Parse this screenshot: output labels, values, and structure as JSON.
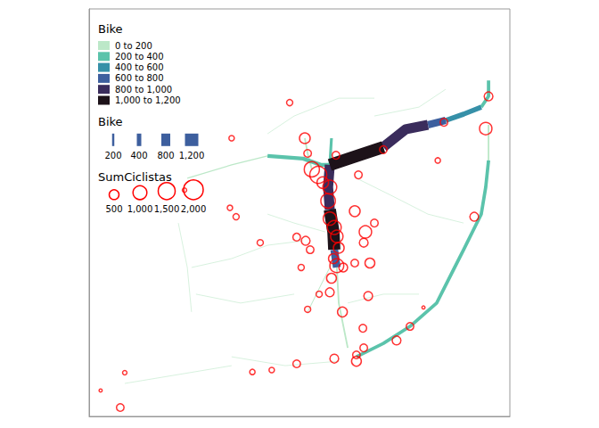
{
  "chart_data": {
    "type": "map",
    "xlim": [
      -9.235,
      -9.085
    ],
    "ylim": [
      38.69,
      38.8
    ],
    "tick_labels": false,
    "grid": false,
    "legend": "top-left",
    "color_legend": {
      "title": "Bike",
      "classes": [
        {
          "label": "0 to 200",
          "min": 0,
          "max": 200,
          "color": "#bce8c8"
        },
        {
          "label": "200 to 400",
          "min": 200,
          "max": 400,
          "color": "#5bc3ab"
        },
        {
          "label": "400 to 600",
          "min": 400,
          "max": 600,
          "color": "#3690a8"
        },
        {
          "label": "600 to 800",
          "min": 600,
          "max": 800,
          "color": "#3d5f9e"
        },
        {
          "label": "800 to 1,000",
          "min": 800,
          "max": 1000,
          "color": "#3a2c5c"
        },
        {
          "label": "1,000 to 1,200",
          "min": 1000,
          "max": 1200,
          "color": "#1d1219"
        }
      ]
    },
    "width_legend": {
      "title": "Bike",
      "values": [
        200,
        400,
        800,
        {
          "value": 1200,
          "label": "1,200"
        }
      ]
    },
    "size_legend": {
      "title": "SumCiclistas",
      "color": "#ff0000",
      "values": [
        500,
        {
          "value": 1000,
          "label": "1,000"
        },
        {
          "value": 1500,
          "label": "1,500"
        },
        {
          "value": 2000,
          "label": "2,000"
        }
      ]
    },
    "routes": [
      {
        "bike": 20,
        "coords": [
          [
            -9.1985,
            38.7302
          ],
          [
            -9.1842,
            38.7326
          ],
          [
            -9.1714,
            38.7362
          ],
          [
            -9.1587,
            38.7374
          ]
        ]
      },
      {
        "bike": 20,
        "coords": [
          [
            -9.1969,
            38.723
          ],
          [
            -9.181,
            38.7206
          ],
          [
            -9.1619,
            38.723
          ]
        ]
      },
      {
        "bike": 20,
        "coords": [
          [
            -9.1714,
            38.7663
          ],
          [
            -9.1619,
            38.7711
          ],
          [
            -9.146,
            38.7759
          ],
          [
            -9.1333,
            38.7759
          ]
        ]
      },
      {
        "bike": 20,
        "coords": [
          [
            -9.1397,
            38.7543
          ],
          [
            -9.1269,
            38.7495
          ],
          [
            -9.1142,
            38.7446
          ],
          [
            -9.1015,
            38.7422
          ]
        ]
      },
      {
        "bike": 20,
        "coords": [
          [
            -9.1428,
            38.7206
          ],
          [
            -9.1301,
            38.723
          ],
          [
            -9.1174,
            38.723
          ]
        ]
      },
      {
        "bike": 20,
        "coords": [
          [
            -9.1842,
            38.7061
          ],
          [
            -9.1651,
            38.7037
          ],
          [
            -9.146,
            38.7049
          ]
        ]
      },
      {
        "bike": 20,
        "coords": [
          [
            -9.2223,
            38.6989
          ],
          [
            -9.2032,
            38.7013
          ],
          [
            -9.1842,
            38.7037
          ]
        ]
      },
      {
        "bike": 20,
        "coords": [
          [
            -9.2032,
            38.7422
          ],
          [
            -9.2,
            38.7302
          ],
          [
            -9.1985,
            38.7182
          ]
        ]
      },
      {
        "bike": 20,
        "coords": [
          [
            -9.1333,
            38.7711
          ],
          [
            -9.1174,
            38.7735
          ],
          [
            -9.1079,
            38.7783
          ]
        ]
      },
      {
        "bike": 20,
        "coords": [
          [
            -9.1714,
            38.7446
          ],
          [
            -9.1619,
            38.7422
          ],
          [
            -9.1508,
            38.7398
          ]
        ]
      },
      {
        "bike": 80,
        "coords": [
          [
            -9.1476,
            38.7326
          ],
          [
            -9.1524,
            38.7254
          ],
          [
            -9.1571,
            38.7182
          ]
        ]
      },
      {
        "bike": 100,
        "coords": [
          [
            -9.2,
            38.7543
          ],
          [
            -9.1842,
            38.7579
          ],
          [
            -9.1714,
            38.7603
          ]
        ]
      },
      {
        "bike": 150,
        "coords": [
          [
            -9.1556,
            38.7567
          ],
          [
            -9.1571,
            38.761
          ],
          [
            -9.1581,
            38.7651
          ]
        ]
      },
      {
        "bike": 150,
        "coords": [
          [
            -9.1467,
            38.7302
          ],
          [
            -9.146,
            38.7206
          ],
          [
            -9.1428,
            38.7085
          ]
        ]
      },
      {
        "bike": 150,
        "coords": [
          [
            -9.0926,
            38.7687
          ],
          [
            -9.0926,
            38.7591
          ]
        ]
      },
      {
        "bike": 250,
        "coords": [
          [
            -9.1486,
            38.7651
          ],
          [
            -9.1492,
            38.7579
          ]
        ]
      },
      {
        "bike": 300,
        "coords": [
          [
            -9.0926,
            38.7591
          ],
          [
            -9.0936,
            38.7519
          ],
          [
            -9.0952,
            38.7446
          ],
          [
            -9.1015,
            38.735
          ],
          [
            -9.1111,
            38.7206
          ],
          [
            -9.1206,
            38.7143
          ],
          [
            -9.1301,
            38.7097
          ],
          [
            -9.1397,
            38.7061
          ]
        ]
      },
      {
        "bike": 300,
        "coords": [
          [
            -9.0952,
            38.7735
          ],
          [
            -9.0926,
            38.7764
          ],
          [
            -9.0926,
            38.7807
          ]
        ]
      },
      {
        "bike": 350,
        "coords": [
          [
            -9.1714,
            38.7603
          ],
          [
            -9.1587,
            38.7596
          ],
          [
            -9.1524,
            38.7579
          ],
          [
            -9.1492,
            38.7579
          ]
        ]
      },
      {
        "bike": 450,
        "coords": [
          [
            -9.1079,
            38.7699
          ],
          [
            -9.1015,
            38.7716
          ],
          [
            -9.0952,
            38.7735
          ]
        ]
      },
      {
        "bike": 650,
        "coords": [
          [
            -9.1142,
            38.7687
          ],
          [
            -9.1079,
            38.7699
          ]
        ]
      },
      {
        "bike": 700,
        "coords": [
          [
            -9.1476,
            38.735
          ],
          [
            -9.1467,
            38.7302
          ]
        ]
      },
      {
        "bike": 900,
        "coords": [
          [
            -9.1492,
            38.7579
          ],
          [
            -9.1498,
            38.7519
          ],
          [
            -9.1492,
            38.7458
          ]
        ]
      },
      {
        "bike": 900,
        "coords": [
          [
            -9.1301,
            38.7627
          ],
          [
            -9.1222,
            38.7675
          ],
          [
            -9.1142,
            38.7687
          ]
        ]
      },
      {
        "bike": 1100,
        "coords": [
          [
            -9.1492,
            38.7458
          ],
          [
            -9.1479,
            38.7398
          ],
          [
            -9.1476,
            38.735
          ]
        ]
      },
      {
        "bike": 1100,
        "coords": [
          [
            -9.1492,
            38.7579
          ],
          [
            -9.1397,
            38.7603
          ],
          [
            -9.1301,
            38.7627
          ]
        ]
      }
    ],
    "points": [
      [
        -9.1635,
        38.7747,
        200
      ],
      [
        -9.1581,
        38.7651,
        600
      ],
      [
        -9.1842,
        38.7651,
        150
      ],
      [
        -9.1571,
        38.761,
        300
      ],
      [
        -9.1556,
        38.7567,
        1200
      ],
      [
        -9.1533,
        38.7552,
        1500
      ],
      [
        -9.1517,
        38.7531,
        700
      ],
      [
        -9.1492,
        38.7519,
        1000
      ],
      [
        -9.1498,
        38.7482,
        1100
      ],
      [
        -9.1492,
        38.7434,
        900
      ],
      [
        -9.1476,
        38.741,
        1000
      ],
      [
        -9.1467,
        38.7386,
        800
      ],
      [
        -9.146,
        38.7355,
        600
      ],
      [
        -9.1479,
        38.7326,
        500
      ],
      [
        -9.1467,
        38.7307,
        1000
      ],
      [
        -9.1444,
        38.7302,
        400
      ],
      [
        -9.1403,
        38.7454,
        600
      ],
      [
        -9.1365,
        38.7398,
        800
      ],
      [
        -9.1333,
        38.7422,
        300
      ],
      [
        -9.1371,
        38.7369,
        400
      ],
      [
        -9.1403,
        38.7314,
        300
      ],
      [
        -9.1349,
        38.7314,
        500
      ],
      [
        -9.1486,
        38.7273,
        500
      ],
      [
        -9.1492,
        38.7235,
        400
      ],
      [
        -9.153,
        38.723,
        200
      ],
      [
        -9.1447,
        38.7182,
        500
      ],
      [
        -9.1355,
        38.7225,
        400
      ],
      [
        -9.1571,
        38.7189,
        200
      ],
      [
        -9.1826,
        38.7439,
        200
      ],
      [
        -9.1848,
        38.7463,
        150
      ],
      [
        -9.174,
        38.7369,
        200
      ],
      [
        -9.161,
        38.7384,
        300
      ],
      [
        -9.1578,
        38.7374,
        400
      ],
      [
        -9.1562,
        38.735,
        300
      ],
      [
        -9.1594,
        38.7302,
        200
      ],
      [
        -9.1301,
        38.762,
        300
      ],
      [
        -9.1107,
        38.7591,
        150
      ],
      [
        -9.1085,
        38.7694,
        300
      ],
      [
        -9.0936,
        38.7677,
        800
      ],
      [
        -9.0926,
        38.7764,
        400
      ],
      [
        -9.0977,
        38.7439,
        400
      ],
      [
        -9.1206,
        38.7143,
        300
      ],
      [
        -9.1254,
        38.7105,
        400
      ],
      [
        -9.1374,
        38.7138,
        300
      ],
      [
        -9.1371,
        38.7085,
        300
      ],
      [
        -9.1397,
        38.7066,
        300
      ],
      [
        -9.1397,
        38.7049,
        500
      ],
      [
        -9.1476,
        38.7056,
        400
      ],
      [
        -9.161,
        38.7042,
        300
      ],
      [
        -9.1699,
        38.7025,
        150
      ],
      [
        -9.1768,
        38.702,
        150
      ],
      [
        -9.201,
        38.7511,
        100
      ],
      [
        -9.2223,
        38.7018,
        100
      ],
      [
        -9.2309,
        38.697,
        50
      ],
      [
        -9.2239,
        38.6924,
        300
      ],
      [
        -9.1158,
        38.7194,
        50
      ],
      [
        -9.147,
        38.7605,
        300
      ],
      [
        -9.139,
        38.7552,
        300
      ]
    ]
  }
}
